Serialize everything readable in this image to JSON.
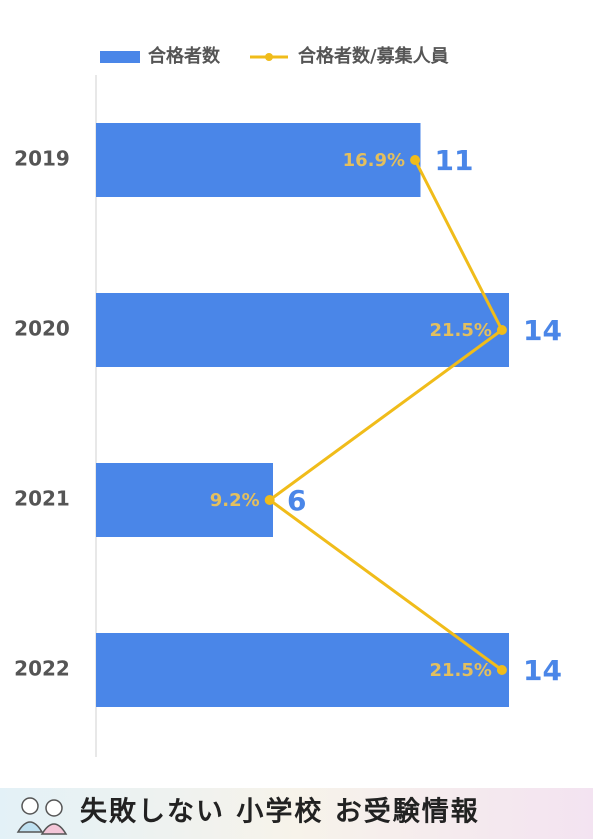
{
  "chart_data": {
    "type": "bar",
    "orientation": "horizontal",
    "categories": [
      "2019",
      "2020",
      "2021",
      "2022"
    ],
    "series": [
      {
        "name": "合格者数",
        "type": "bar",
        "color": "#4a86e8",
        "values": [
          11,
          14,
          6,
          14
        ]
      },
      {
        "name": "合格者数/募集人員",
        "type": "line",
        "axis": "x2",
        "color": "#f0bc1a",
        "values": [
          16.9,
          21.5,
          9.2,
          21.5
        ],
        "value_labels": [
          "16.9%",
          "21.5%",
          "9.2%",
          "21.5%"
        ]
      }
    ],
    "xlim": [
      0,
      16
    ],
    "x2lim": [
      0,
      25
    ],
    "legend": "top"
  },
  "footer": {
    "title": "失敗しない 小学校 お受験情報"
  }
}
